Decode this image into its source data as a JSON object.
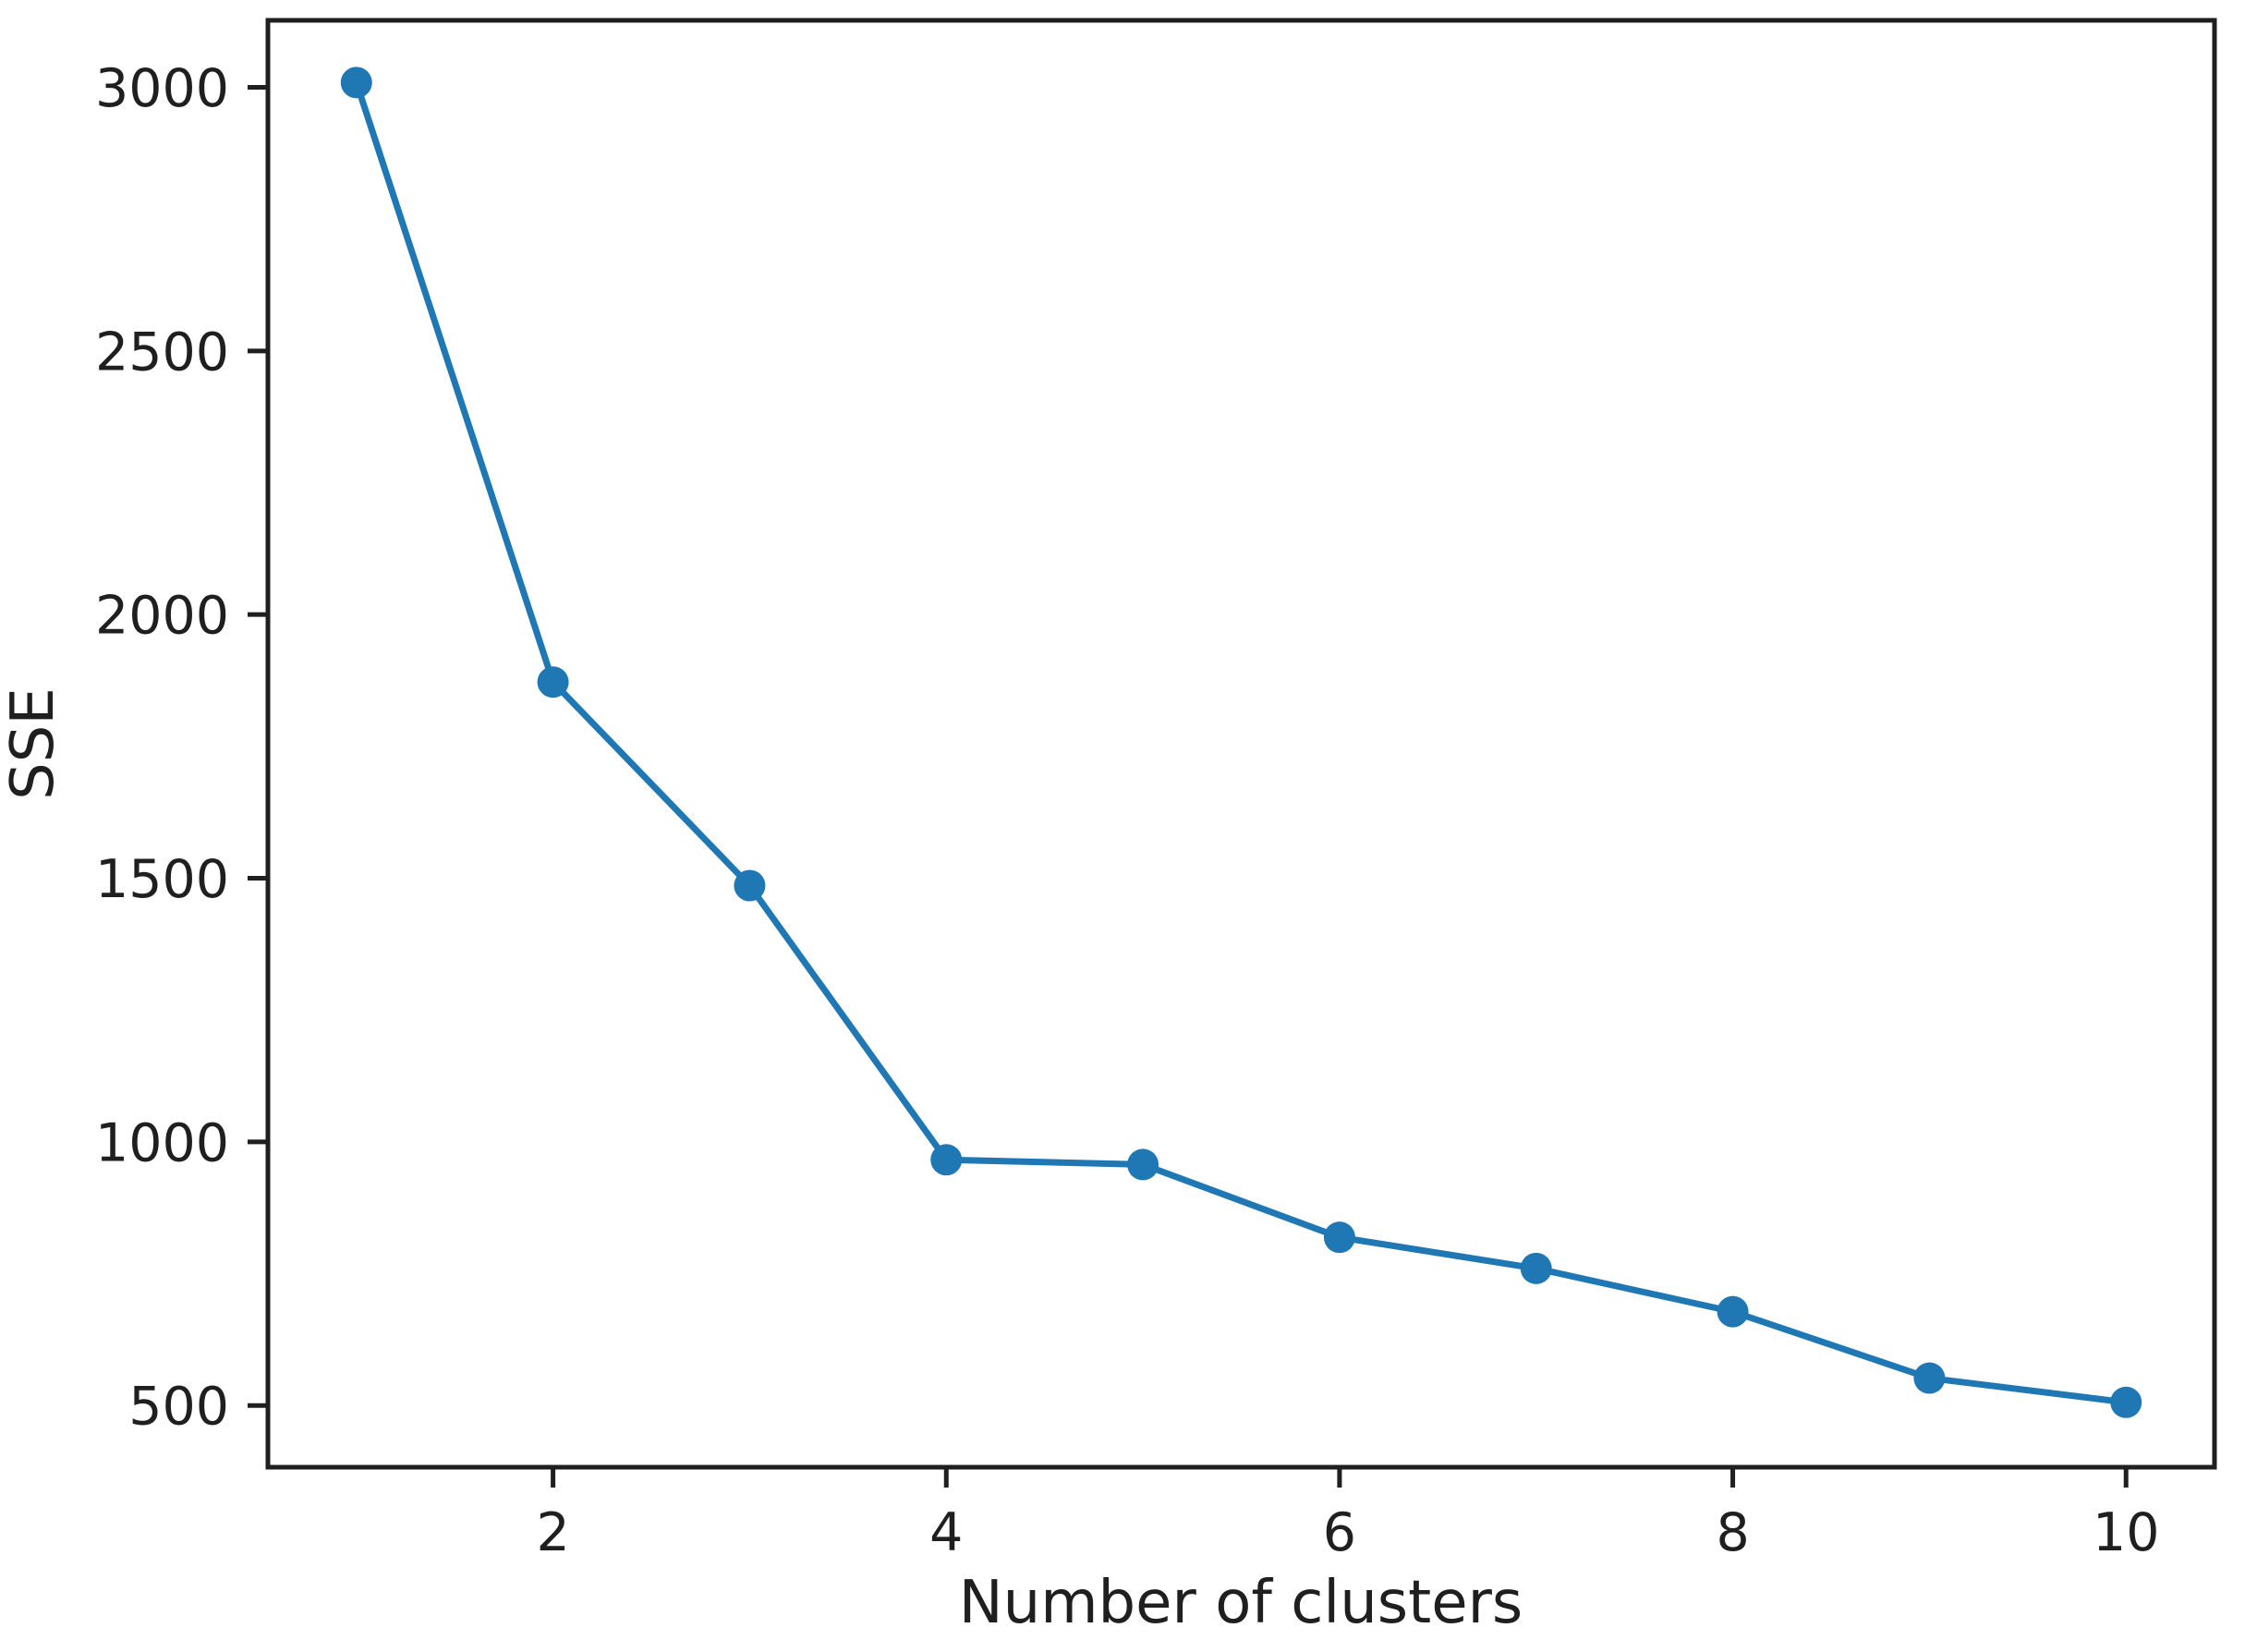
{
  "chart_data": {
    "type": "line",
    "title": "",
    "xlabel": "Number of clusters",
    "ylabel": "SSE",
    "x": [
      1,
      2,
      3,
      4,
      5,
      6,
      7,
      8,
      9,
      10
    ],
    "y": [
      3009,
      1872,
      1486,
      966,
      957,
      819,
      760,
      678,
      552,
      506
    ],
    "x_ticks": [
      2,
      4,
      6,
      8,
      10
    ],
    "y_ticks": [
      500,
      1000,
      1500,
      2000,
      2500,
      3000
    ],
    "xlim": [
      0.55,
      10.45
    ],
    "ylim": [
      383,
      3127
    ],
    "grid": false,
    "legend": "none",
    "line_color": "#1f77b4",
    "marker": "circle",
    "axis_color": "#1f1f1f",
    "background_color": "#ffffff"
  }
}
